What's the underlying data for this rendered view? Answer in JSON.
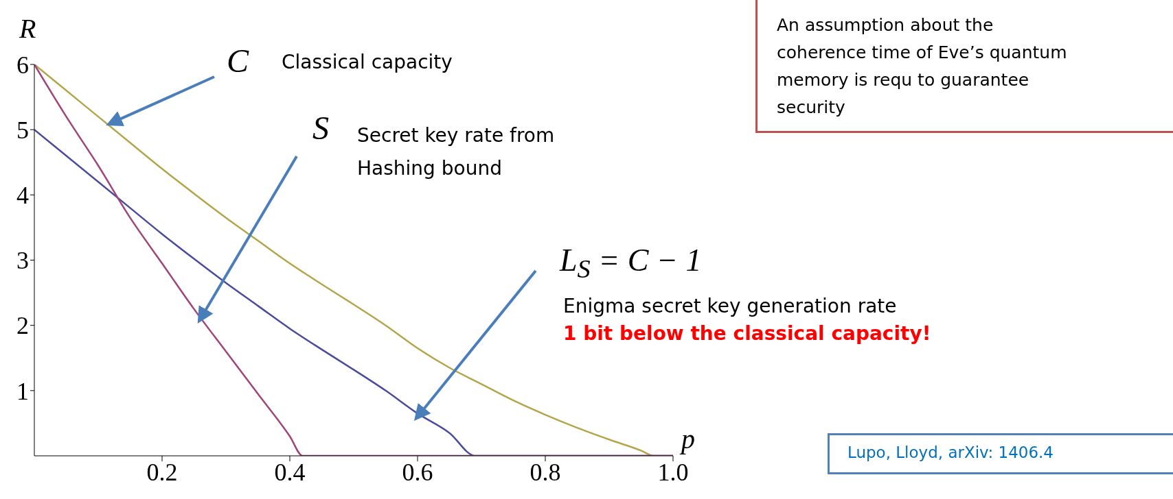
{
  "chart_data": {
    "type": "line",
    "xlabel": "p",
    "ylabel": "R",
    "xlim": [
      0,
      1
    ],
    "ylim": [
      0,
      6
    ],
    "xticks": [
      0.2,
      0.4,
      0.6,
      0.8,
      {
        "value": 1,
        "label": "1.0"
      }
    ],
    "yticks": [
      1,
      2,
      3,
      4,
      5,
      6
    ],
    "marker": "none",
    "line_style": "solid",
    "series": [
      {
        "color": "#b3a54a",
        "x": [
          0,
          0.05,
          0.1,
          0.15,
          0.2,
          0.25,
          0.3,
          0.35,
          0.4,
          0.45,
          0.5,
          0.55,
          0.6,
          0.65,
          0.7,
          0.75,
          0.8,
          0.85,
          0.9,
          0.95,
          0.97,
          1
        ],
        "values": [
          6,
          5.6,
          5.2,
          4.8,
          4.4,
          4.02,
          3.65,
          3.3,
          2.95,
          2.63,
          2.32,
          2,
          1.65,
          1.35,
          1.1,
          0.85,
          0.63,
          0.43,
          0.25,
          0.08,
          0,
          0
        ]
      },
      {
        "color": "#4b4b9e",
        "x": [
          0,
          0.05,
          0.1,
          0.15,
          0.2,
          0.25,
          0.3,
          0.35,
          0.4,
          0.45,
          0.5,
          0.55,
          0.6,
          0.65,
          0.69,
          1
        ],
        "values": [
          5,
          4.6,
          4.2,
          3.8,
          3.4,
          3.02,
          2.65,
          2.3,
          1.95,
          1.63,
          1.32,
          1,
          0.65,
          0.35,
          0,
          0
        ]
      },
      {
        "color": "#a0457a",
        "x": [
          0,
          0.05,
          0.1,
          0.15,
          0.2,
          0.25,
          0.3,
          0.35,
          0.4,
          0.42,
          1
        ],
        "values": [
          6,
          5.2,
          4.45,
          3.65,
          2.95,
          2.25,
          1.6,
          0.95,
          0.3,
          0,
          0
        ]
      }
    ],
    "annotations": [
      {
        "text": "C",
        "x": 0.12,
        "y": 5.1
      },
      "Classical capacity",
      {
        "text": "S",
        "x": 0.26,
        "y": 2.1
      },
      "Secret key rate from Hashing bound",
      {
        "text": "L$_{S}$ = C − 1",
        "x": 0.6,
        "y": 0.6
      },
      "Enigma secret key generation rate",
      "1 bit below the classical capacity!",
      "An assumption about the coherence time of Eve’s quantum memory is requ to guarantee security",
      "Lupo, Lloyd, arXiv: 1406.4"
    ]
  }
}
